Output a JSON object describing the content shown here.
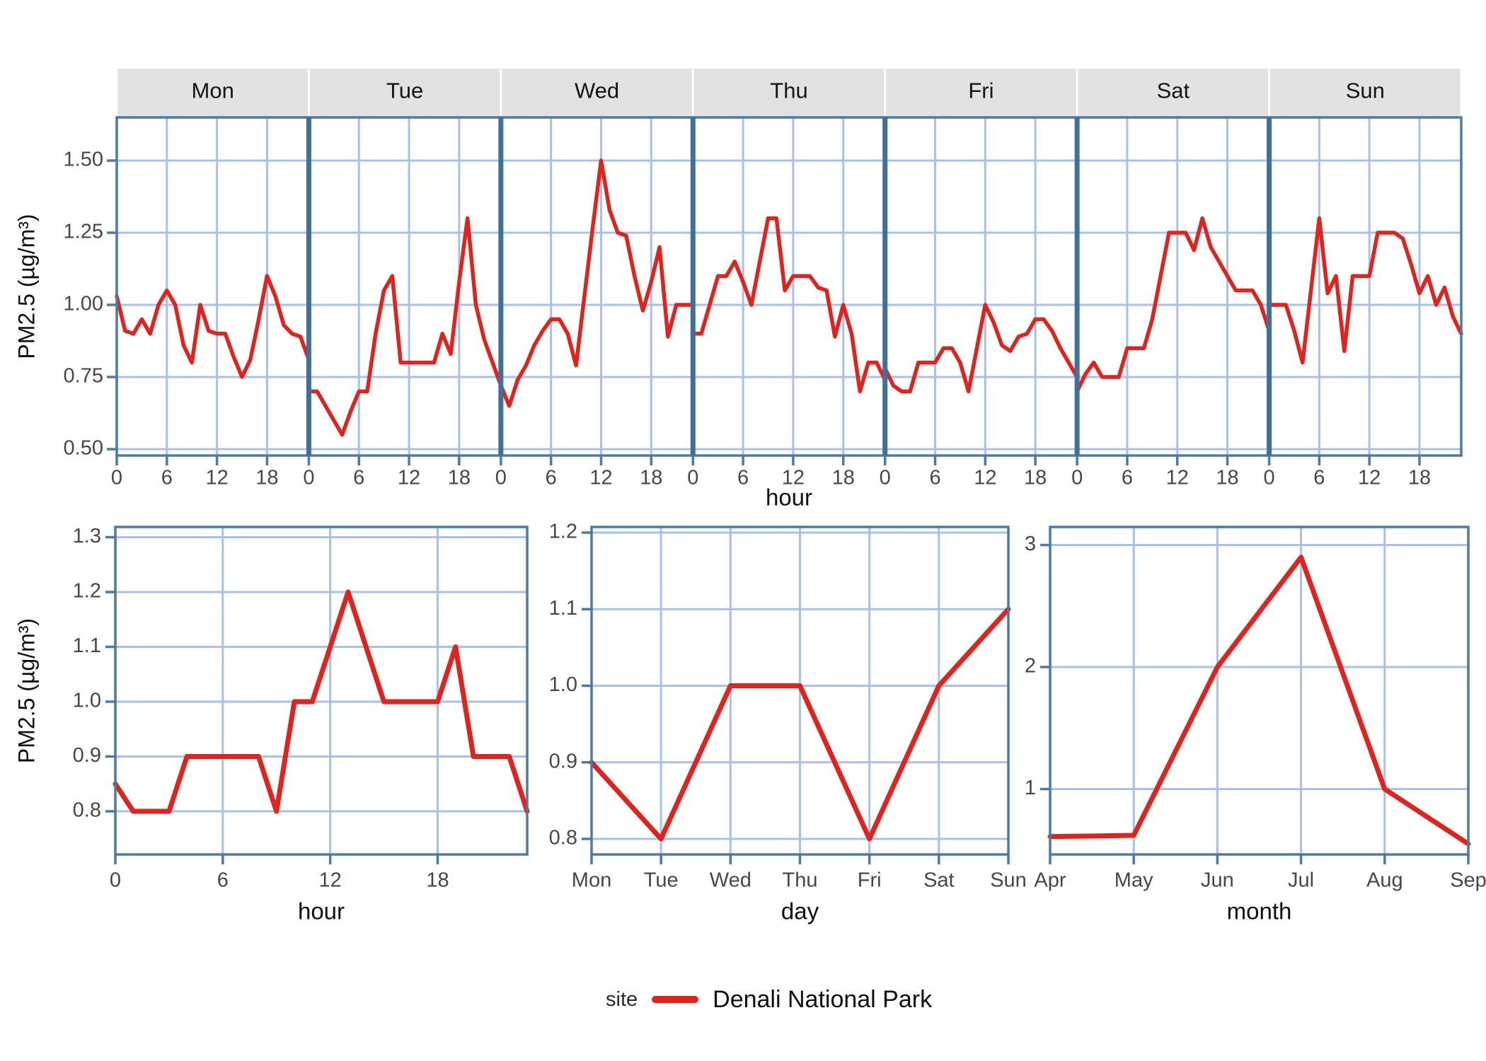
{
  "colors": {
    "line": "#e0231c",
    "grid": "#a9c1e8",
    "frame": "#4a7ba6",
    "divider": "#3e6f9d",
    "strip_bg": "#e2e2e2",
    "tick_text": "#474747",
    "title_text": "#0f0f0f"
  },
  "legend": {
    "title": "site",
    "series_label": "Denali National Park"
  },
  "axes": {
    "y_label": "PM2.5 (µg/m³)",
    "top_x_label": "hour",
    "bottom_left_x_label": "hour",
    "bottom_mid_x_label": "day",
    "bottom_right_x_label": "month"
  },
  "chart_data": [
    {
      "type": "line",
      "id": "hour-by-weekday",
      "title": "",
      "xlabel": "hour",
      "ylabel": "PM2.5 (µg/m³)",
      "x": [
        0,
        1,
        2,
        3,
        4,
        5,
        6,
        7,
        8,
        9,
        10,
        11,
        12,
        13,
        14,
        15,
        16,
        17,
        18,
        19,
        20,
        21,
        22,
        23
      ],
      "xticks": [
        0,
        6,
        12,
        18
      ],
      "xtick_labels": [
        "0",
        "6",
        "12",
        "18"
      ],
      "yticks": [
        0.5,
        0.75,
        1.0,
        1.25,
        1.5
      ],
      "ytick_labels": [
        "0.50",
        "0.75",
        "1.00",
        "1.25",
        "1.50"
      ],
      "ylim": [
        0.48,
        1.65
      ],
      "facet_order": [
        "Mon",
        "Tue",
        "Wed",
        "Thu",
        "Fri",
        "Sat",
        "Sun"
      ],
      "series": [
        {
          "facet": "Mon",
          "name": "Denali National Park",
          "values": [
            1.03,
            0.91,
            0.9,
            0.95,
            0.9,
            1.0,
            1.05,
            1.0,
            0.86,
            0.8,
            1.0,
            0.91,
            0.9,
            0.9,
            0.82,
            0.75,
            0.81,
            0.95,
            1.1,
            1.03,
            0.93,
            0.9,
            0.89,
            0.81
          ]
        },
        {
          "facet": "Tue",
          "name": "Denali National Park",
          "values": [
            0.7,
            0.7,
            0.65,
            0.6,
            0.55,
            0.63,
            0.7,
            0.7,
            0.9,
            1.05,
            1.1,
            0.8,
            0.8,
            0.8,
            0.8,
            0.8,
            0.9,
            0.83,
            1.08,
            1.3,
            1.0,
            0.88,
            0.8,
            0.72
          ]
        },
        {
          "facet": "Wed",
          "name": "Denali National Park",
          "values": [
            0.72,
            0.65,
            0.74,
            0.79,
            0.86,
            0.91,
            0.95,
            0.95,
            0.9,
            0.79,
            1.03,
            1.27,
            1.5,
            1.33,
            1.25,
            1.24,
            1.1,
            0.98,
            1.08,
            1.2,
            0.89,
            1.0,
            1.0,
            1.0
          ]
        },
        {
          "facet": "Thu",
          "name": "Denali National Park",
          "values": [
            0.9,
            0.9,
            1.0,
            1.1,
            1.1,
            1.15,
            1.08,
            1.0,
            1.15,
            1.3,
            1.3,
            1.05,
            1.1,
            1.1,
            1.1,
            1.06,
            1.05,
            0.89,
            1.0,
            0.9,
            0.7,
            0.8,
            0.8,
            0.74
          ]
        },
        {
          "facet": "Fri",
          "name": "Denali National Park",
          "values": [
            0.78,
            0.72,
            0.7,
            0.7,
            0.8,
            0.8,
            0.8,
            0.85,
            0.85,
            0.8,
            0.7,
            0.85,
            1.0,
            0.94,
            0.86,
            0.84,
            0.89,
            0.9,
            0.95,
            0.95,
            0.91,
            0.85,
            0.8,
            0.75
          ]
        },
        {
          "facet": "Sat",
          "name": "Denali National Park",
          "values": [
            0.7,
            0.76,
            0.8,
            0.75,
            0.75,
            0.75,
            0.85,
            0.85,
            0.85,
            0.95,
            1.1,
            1.25,
            1.25,
            1.25,
            1.19,
            1.3,
            1.2,
            1.15,
            1.1,
            1.05,
            1.05,
            1.05,
            1.0,
            0.91
          ]
        },
        {
          "facet": "Sun",
          "name": "Denali National Park",
          "values": [
            1.0,
            1.0,
            1.0,
            0.91,
            0.8,
            1.05,
            1.3,
            1.04,
            1.1,
            0.84,
            1.1,
            1.1,
            1.1,
            1.25,
            1.25,
            1.25,
            1.23,
            1.14,
            1.04,
            1.1,
            1.0,
            1.06,
            0.96,
            0.9
          ]
        }
      ]
    },
    {
      "type": "line",
      "id": "diurnal",
      "xlabel": "hour",
      "ylabel": "PM2.5 (µg/m³)",
      "x": [
        0,
        1,
        2,
        3,
        4,
        5,
        6,
        7,
        8,
        9,
        10,
        11,
        12,
        13,
        14,
        15,
        16,
        17,
        18,
        19,
        20,
        21,
        22,
        23
      ],
      "xticks": [
        0,
        6,
        12,
        18
      ],
      "xtick_labels": [
        "0",
        "6",
        "12",
        "18"
      ],
      "yticks": [
        0.8,
        0.9,
        1.0,
        1.1,
        1.2,
        1.3
      ],
      "ytick_labels": [
        "0.8",
        "0.9",
        "1.0",
        "1.1",
        "1.2",
        "1.3"
      ],
      "ylim": [
        0.72,
        1.3
      ],
      "values": [
        0.85,
        0.8,
        0.8,
        0.8,
        0.9,
        0.9,
        0.9,
        0.9,
        0.9,
        0.8,
        1.0,
        1.0,
        1.1,
        1.2,
        1.1,
        1.0,
        1.0,
        1.0,
        1.0,
        1.1,
        0.9,
        0.9,
        0.9,
        0.8
      ]
    },
    {
      "type": "line",
      "id": "weekday",
      "xlabel": "day",
      "categories": [
        "Mon",
        "Tue",
        "Wed",
        "Thu",
        "Fri",
        "Sat",
        "Sun"
      ],
      "yticks": [
        0.8,
        0.9,
        1.0,
        1.1,
        1.2
      ],
      "ytick_labels": [
        "0.8",
        "0.9",
        "1.0",
        "1.1",
        "1.2"
      ],
      "ylim": [
        0.78,
        1.21
      ],
      "values": [
        0.9,
        0.8,
        1.0,
        1.0,
        0.8,
        1.0,
        1.1
      ]
    },
    {
      "type": "line",
      "id": "monthly",
      "xlabel": "month",
      "categories": [
        "Apr",
        "May",
        "Jun",
        "Jul",
        "Aug",
        "Sep"
      ],
      "yticks": [
        1,
        2,
        3
      ],
      "ytick_labels": [
        "1",
        "2",
        "3"
      ],
      "ylim": [
        0.46,
        3.15
      ],
      "values": [
        0.61,
        0.62,
        2.0,
        2.9,
        1.0,
        0.55
      ]
    }
  ]
}
